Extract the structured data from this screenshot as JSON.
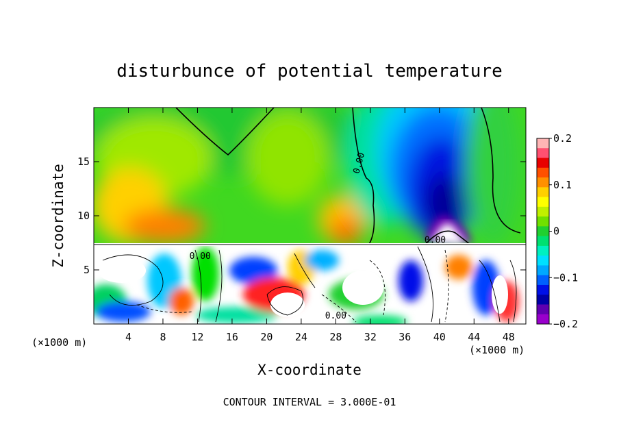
{
  "chart_data": {
    "type": "heatmap",
    "title": "disturbunce of potential temperature",
    "xlabel": "X-coordinate",
    "ylabel": "Z-coordinate",
    "x_unit_label": "(×1000 m)",
    "x_unit_label_right": "(×1000 m)",
    "xlim": [
      0,
      50
    ],
    "ylim": [
      0,
      20
    ],
    "x_ticks": [
      4,
      8,
      12,
      16,
      20,
      24,
      28,
      32,
      36,
      40,
      44,
      48
    ],
    "y_ticks": [
      5,
      10,
      15
    ],
    "contour_interval_text": "CONTOUR INTERVAL = 3.000E-01",
    "contour_labels": [
      {
        "text": "0.00",
        "x": 31.0,
        "z": 14.8,
        "rotate": -75
      },
      {
        "text": "0.00",
        "x": 39.5,
        "z": 7.5
      },
      {
        "text": "0.00",
        "x": 12.3,
        "z": 6.0
      },
      {
        "text": "0.00",
        "x": 28.0,
        "z": 0.5
      }
    ],
    "colorbar": {
      "ticks": [
        0.2,
        0.1,
        0,
        -0.1,
        -0.2
      ],
      "tick_labels": [
        "0.2",
        "0.1",
        "0",
        "−0.1",
        "−0.2"
      ],
      "range": [
        -0.2,
        0.2
      ],
      "colors": [
        "#ffb5b5",
        "#ff5070",
        "#e80000",
        "#ff5000",
        "#ff9000",
        "#ffd000",
        "#ffff00",
        "#c0f000",
        "#70e000",
        "#20d030",
        "#00e070",
        "#00f0c0",
        "#00e0ff",
        "#00a8ff",
        "#0060ff",
        "#0010e8",
        "#0000a8",
        "#6000b0",
        "#9900cc"
      ]
    }
  }
}
